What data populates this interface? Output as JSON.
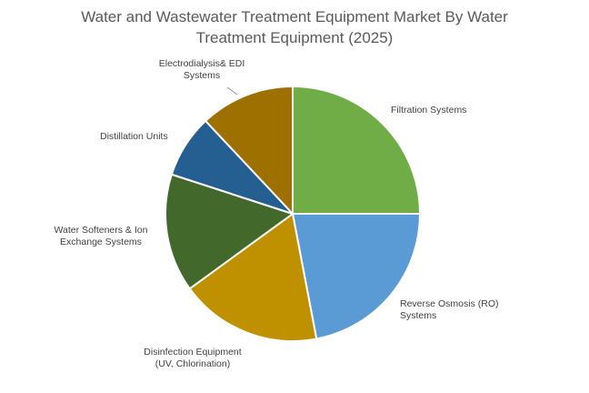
{
  "chart_data": {
    "type": "pie",
    "title_lines": [
      "Water and Wastewater Treatment Equipment Market By Water",
      "Treatment Equipment (2025)"
    ],
    "slices": [
      {
        "label_lines": [
          "Filtration Systems"
        ],
        "value": 25,
        "color": "#70ad47"
      },
      {
        "label_lines": [
          "Reverse Osmosis (RO)",
          "Systems"
        ],
        "value": 22,
        "color": "#5b9bd5"
      },
      {
        "label_lines": [
          "Disinfection Equipment",
          "(UV, Chlorination)"
        ],
        "value": 18,
        "color": "#bf9000"
      },
      {
        "label_lines": [
          "Water Softeners & Ion",
          "Exchange Systems"
        ],
        "value": 15,
        "color": "#43682b"
      },
      {
        "label_lines": [
          "Distillation Units"
        ],
        "value": 8,
        "color": "#255e91"
      },
      {
        "label_lines": [
          "Electrodialysis& EDI",
          "Systems"
        ],
        "value": 12,
        "color": "#9e7000"
      }
    ],
    "start_angle_deg": 0,
    "direction": "clockwise",
    "legend": "none"
  }
}
